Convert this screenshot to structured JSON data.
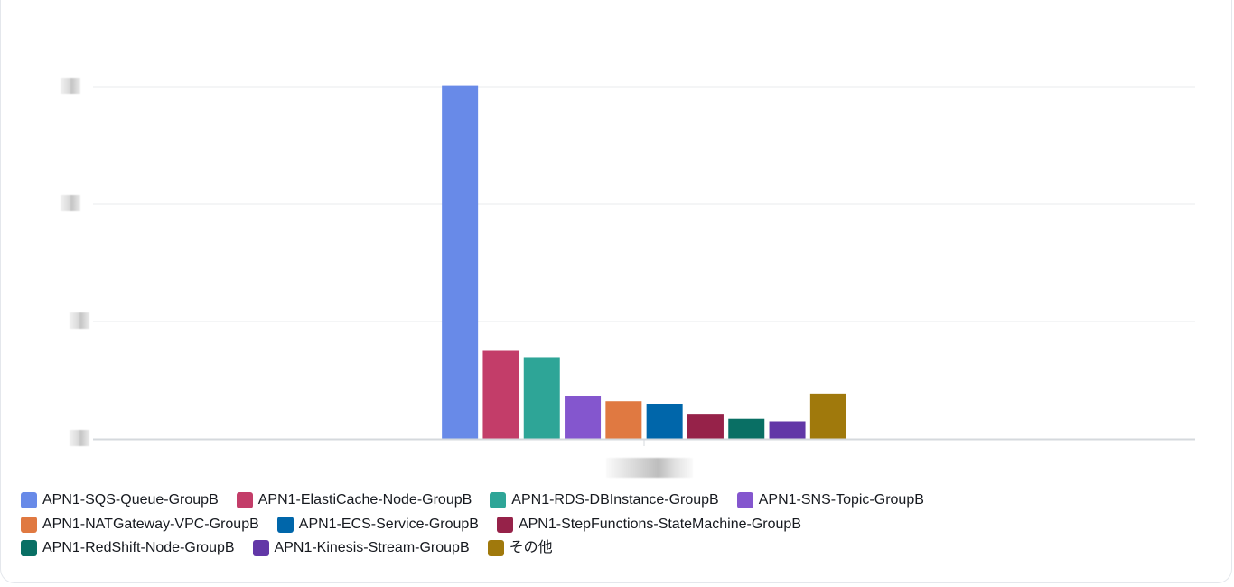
{
  "chart_data": {
    "type": "bar",
    "categories": [
      ""
    ],
    "ylim": [
      0,
      14
    ],
    "grid": true,
    "legend_position": "bottom",
    "series": [
      {
        "name": "APN1-SQS-Queue-GroupB",
        "color": "#688ae8",
        "values": [
          14.05
        ]
      },
      {
        "name": "APN1-ElastiCache-Node-GroupB",
        "color": "#c33d69",
        "values": [
          3.5
        ]
      },
      {
        "name": "APN1-RDS-DBInstance-GroupB",
        "color": "#2ea597",
        "values": [
          3.25
        ]
      },
      {
        "name": "APN1-SNS-Topic-GroupB",
        "color": "#8456ce",
        "values": [
          1.7
        ]
      },
      {
        "name": "APN1-NATGateway-VPC-GroupB",
        "color": "#e07941",
        "values": [
          1.5
        ]
      },
      {
        "name": "APN1-ECS-Service-GroupB",
        "color": "#0066aa",
        "values": [
          1.4
        ]
      },
      {
        "name": "APN1-StepFunctions-StateMachine-GroupB",
        "color": "#962249",
        "values": [
          1.0
        ]
      },
      {
        "name": "APN1-RedShift-Node-GroupB",
        "color": "#096f64",
        "values": [
          0.8
        ]
      },
      {
        "name": "APN1-Kinesis-Stream-GroupB",
        "color": "#6237a7",
        "values": [
          0.7
        ]
      },
      {
        "name": "その他",
        "color": "#a0790c",
        "values": [
          1.8
        ]
      }
    ]
  },
  "legend_rows": [
    [
      0,
      1,
      2,
      3
    ],
    [
      4,
      5,
      6
    ],
    [
      7,
      8,
      9
    ]
  ]
}
